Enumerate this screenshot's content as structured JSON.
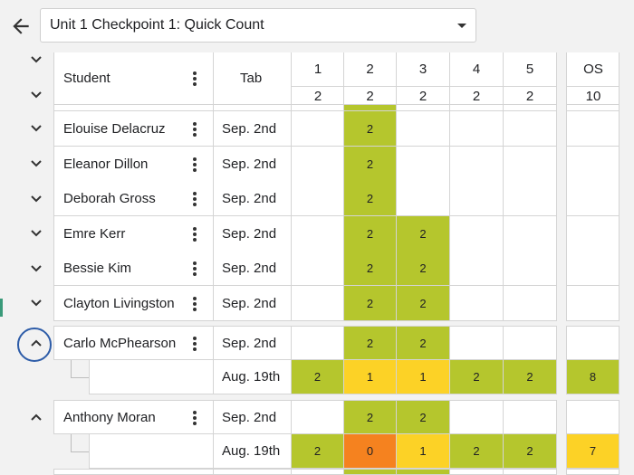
{
  "header": {
    "assessment_select_value": "Unit 1 Checkpoint 1: Quick Count"
  },
  "table": {
    "col_student": "Student",
    "col_tab": "Tab",
    "question_numbers": [
      "1",
      "2",
      "3",
      "4",
      "5"
    ],
    "question_points": [
      "2",
      "2",
      "2",
      "2",
      "2"
    ],
    "overall_label": "OS",
    "overall_points": "10"
  },
  "rows": [
    {
      "name": "Elouise Delacruz",
      "tab": "Sep. 2nd",
      "scores": [
        "",
        "2",
        "",
        "",
        ""
      ],
      "os": ""
    },
    {
      "name": "Eleanor Dillon",
      "tab": "Sep. 2nd",
      "scores": [
        "",
        "2",
        "",
        "",
        ""
      ],
      "os": ""
    },
    {
      "name": "Deborah Gross",
      "tab": "Sep. 2nd",
      "scores": [
        "",
        "2",
        "",
        "",
        ""
      ],
      "os": ""
    },
    {
      "name": "Emre Kerr",
      "tab": "Sep. 2nd",
      "scores": [
        "",
        "2",
        "2",
        "",
        ""
      ],
      "os": ""
    },
    {
      "name": "Bessie Kim",
      "tab": "Sep. 2nd",
      "scores": [
        "",
        "2",
        "2",
        "",
        ""
      ],
      "os": ""
    },
    {
      "name": "Clayton Livingston",
      "tab": "Sep. 2nd",
      "scores": [
        "",
        "2",
        "2",
        "",
        ""
      ],
      "os": ""
    }
  ],
  "expanded": [
    {
      "name": "Carlo McPhearson",
      "tab": "Sep. 2nd",
      "scores": [
        "",
        "2",
        "2",
        "",
        ""
      ],
      "os": "",
      "sub_tab": "Aug. 19th",
      "sub_scores": [
        "2",
        "1",
        "1",
        "2",
        "2"
      ],
      "sub_os": "8"
    },
    {
      "name": "Anthony Moran",
      "tab": "Sep. 2nd",
      "scores": [
        "",
        "2",
        "2",
        "",
        ""
      ],
      "os": "",
      "sub_tab": "Aug. 19th",
      "sub_scores": [
        "2",
        "0",
        "1",
        "2",
        "2"
      ],
      "sub_os": "7"
    }
  ],
  "colors": {
    "full": "#b5c62d",
    "partial": "#fcd226",
    "zero": "#f5821f",
    "os_partial": "#fcd226",
    "os_full": "#b5c62d"
  }
}
